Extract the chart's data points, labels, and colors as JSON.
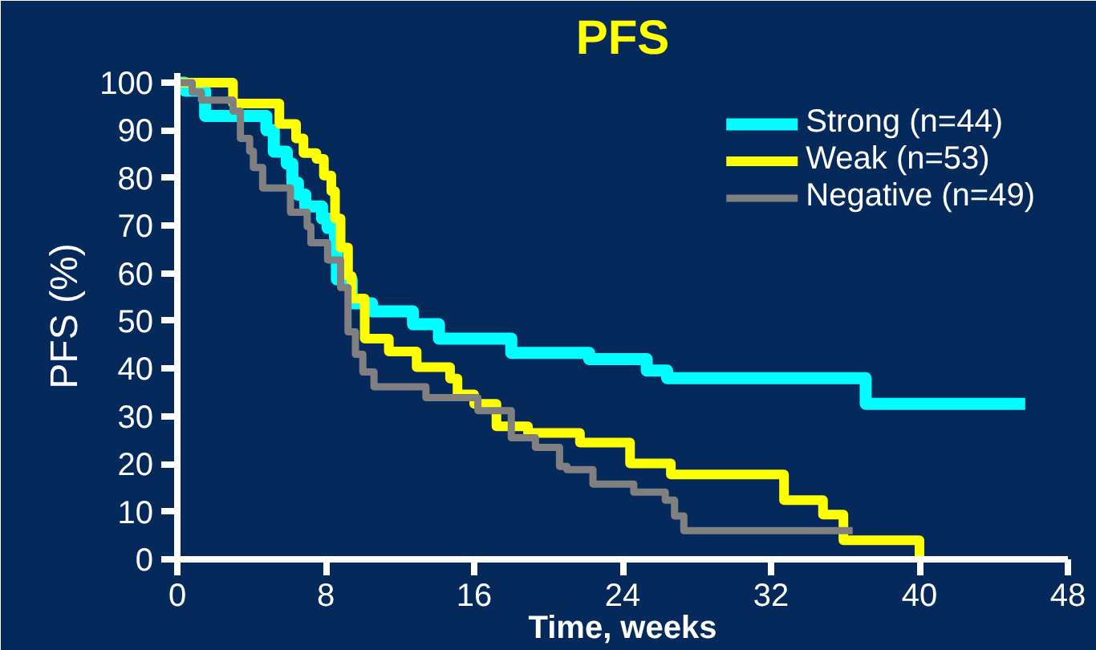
{
  "chart_data": {
    "type": "step",
    "title": "PFS",
    "xlabel": "Time, weeks",
    "ylabel": "PFS (%)",
    "xlim": [
      0,
      48
    ],
    "ylim": [
      0,
      102
    ],
    "xticks": [
      0,
      8,
      16,
      24,
      32,
      40,
      48
    ],
    "yticks": [
      0,
      10,
      20,
      30,
      40,
      50,
      60,
      70,
      80,
      90,
      100
    ],
    "grid": false,
    "legend": "top right",
    "line_style": "solid",
    "marker": "none",
    "series": [
      {
        "name": "Strong (n=44)",
        "color": "#00ffff",
        "x": [
          0,
          0.4,
          1.5,
          4.8,
          5.2,
          5.9,
          6.2,
          6.5,
          6.9,
          7.8,
          8.1,
          8.5,
          8.6,
          9.4,
          10.5,
          12.7,
          14.1,
          18,
          22.2,
          25.3,
          26.4,
          37.1,
          45.7
        ],
        "values": [
          100,
          98.3,
          93,
          90,
          85.5,
          83,
          79,
          76.5,
          74,
          71.5,
          69.5,
          65,
          58.7,
          53.7,
          52,
          49.3,
          46.3,
          43.3,
          42,
          39.6,
          38,
          32.6,
          32.6
        ]
      },
      {
        "name": "Weak (n=53)",
        "color": "#ffff00",
        "x": [
          0,
          3.0,
          5.5,
          6.4,
          6.8,
          7.5,
          7.9,
          8.3,
          8.5,
          8.8,
          9.2,
          9.4,
          10.1,
          11.4,
          12.9,
          14.7,
          15.1,
          16,
          17.2,
          18.9,
          21.7,
          24.4,
          26.6,
          32.7,
          34.8,
          35.9,
          40
        ],
        "values": [
          100,
          95.6,
          91.3,
          88.3,
          85.2,
          84,
          80.5,
          77.2,
          71.5,
          65.4,
          59.4,
          54.7,
          46.3,
          43.6,
          40.3,
          37.9,
          34.6,
          32.6,
          27.9,
          26.5,
          24.5,
          20.1,
          17.8,
          12.4,
          9.4,
          4,
          0
        ]
      },
      {
        "name": "Negative (n=49)",
        "color": "#808080",
        "x": [
          0,
          0.8,
          1.3,
          3.0,
          3.4,
          3.9,
          4.1,
          4.6,
          6.1,
          7.0,
          7.2,
          8.1,
          8.8,
          9.2,
          9.6,
          10,
          10.6,
          13.4,
          16.2,
          18,
          19.3,
          20.6,
          21,
          22.4,
          24.6,
          26.3,
          26.8,
          27.3,
          36.4
        ],
        "values": [
          100,
          98,
          96.3,
          94,
          88.3,
          85.6,
          82.2,
          77.9,
          72.8,
          69.8,
          66.4,
          62.8,
          57,
          47.7,
          43,
          39.3,
          36.2,
          33.9,
          31.2,
          25.5,
          23.5,
          19.5,
          18.8,
          15.8,
          14.1,
          12.4,
          9.1,
          6,
          6
        ]
      }
    ]
  }
}
